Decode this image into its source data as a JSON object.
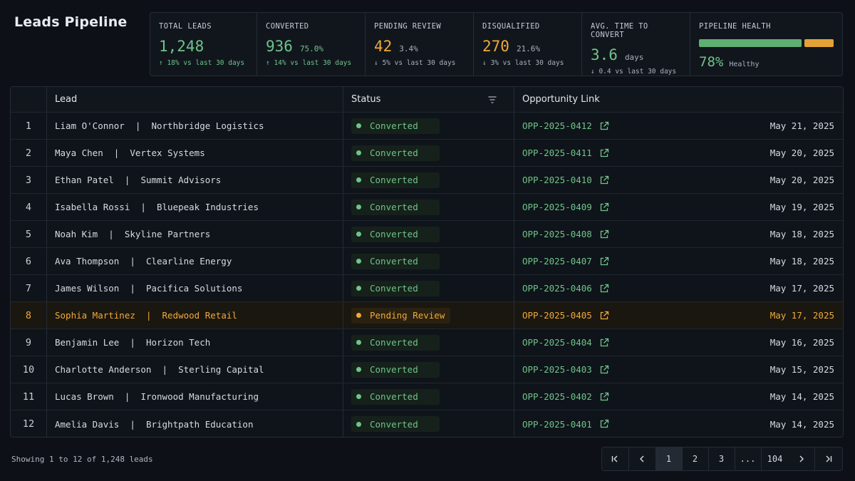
{
  "page": {
    "title": "Leads Pipeline"
  },
  "kpis": {
    "total": {
      "label": "TOTAL LEADS",
      "value": "1,248",
      "delta": "↑ 18% vs last 30 days"
    },
    "converted": {
      "label": "CONVERTED",
      "value": "936",
      "pct": "75.0%",
      "delta": "↑ 14% vs last 30 days"
    },
    "pending": {
      "label": "PENDING REVIEW",
      "value": "42",
      "pct": "3.4%",
      "delta": "↓ 5% vs last 30 days"
    },
    "disqualified": {
      "label": "DISQUALIFIED",
      "value": "270",
      "pct": "21.6%",
      "delta": "↓ 3% vs last 30 days"
    },
    "avg_time": {
      "label": "AVG. TIME TO CONVERT",
      "value": "3.6",
      "unit": "days",
      "delta": "↓ 0.4 vs last 30 days"
    },
    "health": {
      "label": "PIPELINE HEALTH",
      "value": "78%",
      "status": "Healthy",
      "level": 0.78,
      "colors": {
        "good": "#5fae72",
        "rest": "#e3a236"
      }
    }
  },
  "table": {
    "headers": {
      "lead": "Lead",
      "status": "Status",
      "opportunity": "Opportunity Link"
    },
    "separator": "  |  ",
    "rows": [
      {
        "num": "1",
        "name": "Liam O'Connor",
        "company": "Northbridge Logistics",
        "status": "Converted",
        "opp": "OPP-2025-0412",
        "date": "May 21, 2025"
      },
      {
        "num": "2",
        "name": "Maya Chen",
        "company": "Vertex Systems",
        "status": "Converted",
        "opp": "OPP-2025-0411",
        "date": "May 20, 2025"
      },
      {
        "num": "3",
        "name": "Ethan Patel",
        "company": "Summit Advisors",
        "status": "Converted",
        "opp": "OPP-2025-0410",
        "date": "May 20, 2025"
      },
      {
        "num": "4",
        "name": "Isabella Rossi",
        "company": "Bluepeak Industries",
        "status": "Converted",
        "opp": "OPP-2025-0409",
        "date": "May 19, 2025"
      },
      {
        "num": "5",
        "name": "Noah Kim",
        "company": "Skyline Partners",
        "status": "Converted",
        "opp": "OPP-2025-0408",
        "date": "May 18, 2025"
      },
      {
        "num": "6",
        "name": "Ava Thompson",
        "company": "Clearline Energy",
        "status": "Converted",
        "opp": "OPP-2025-0407",
        "date": "May 18, 2025"
      },
      {
        "num": "7",
        "name": "James Wilson",
        "company": "Pacifica Solutions",
        "status": "Converted",
        "opp": "OPP-2025-0406",
        "date": "May 17, 2025"
      },
      {
        "num": "8",
        "name": "Sophia Martinez",
        "company": "Redwood Retail",
        "status": "Pending Review",
        "opp": "OPP-2025-0405",
        "date": "May 17, 2025"
      },
      {
        "num": "9",
        "name": "Benjamin Lee",
        "company": "Horizon Tech",
        "status": "Converted",
        "opp": "OPP-2025-0404",
        "date": "May 16, 2025"
      },
      {
        "num": "10",
        "name": "Charlotte Anderson",
        "company": "Sterling Capital",
        "status": "Converted",
        "opp": "OPP-2025-0403",
        "date": "May 15, 2025"
      },
      {
        "num": "11",
        "name": "Lucas Brown",
        "company": "Ironwood Manufacturing",
        "status": "Converted",
        "opp": "OPP-2025-0402",
        "date": "May 14, 2025"
      },
      {
        "num": "12",
        "name": "Amelia Davis",
        "company": "Brightpath Education",
        "status": "Converted",
        "opp": "OPP-2025-0401",
        "date": "May 14, 2025"
      }
    ]
  },
  "footer": {
    "showing": "Showing 1 to 12 of 1,248 leads",
    "pagination": [
      "1",
      "2",
      "3",
      "...",
      "104"
    ],
    "active_page": "1"
  },
  "icons": [
    "first-page-icon",
    "prev-page-icon",
    "next-page-icon",
    "last-page-icon",
    "filter-icon",
    "external-link-icon"
  ],
  "colors": {
    "converted": "#6fc489",
    "pending": "#f0a93a",
    "background": "#0d1117"
  }
}
